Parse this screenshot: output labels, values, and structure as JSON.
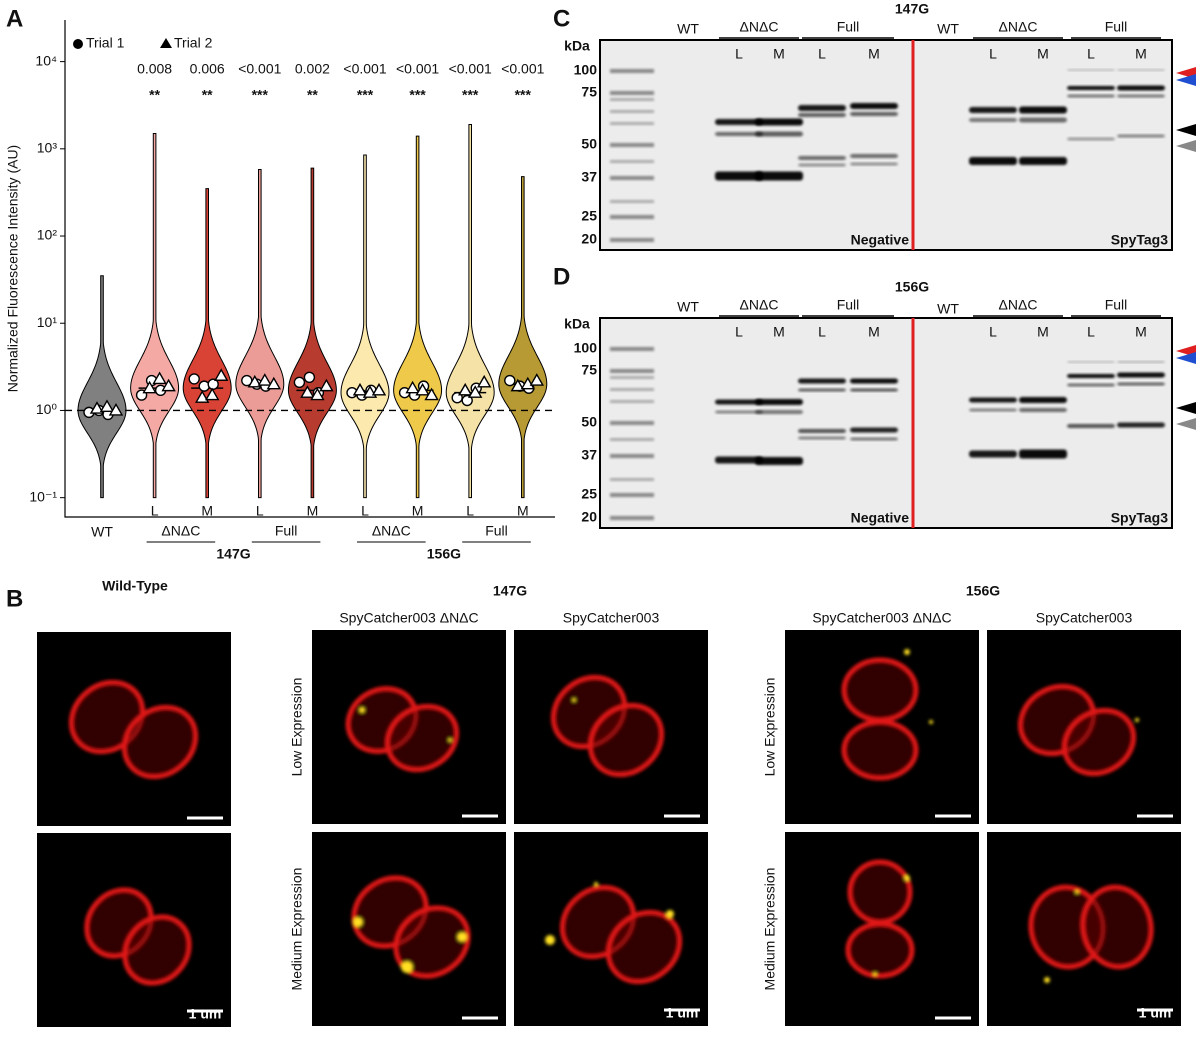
{
  "panel_labels": [
    "A",
    "B",
    "C",
    "D"
  ],
  "chart_data": {
    "type": "violin",
    "ylabel": "Normalized Fluorescence Intensity (AU)",
    "log_scale": true,
    "ylim": [
      0.06,
      30000
    ],
    "yticks": [
      {
        "value": 0.1,
        "label": "10⁻¹"
      },
      {
        "value": 1,
        "label": "10⁰"
      },
      {
        "value": 10,
        "label": "10¹"
      },
      {
        "value": 100,
        "label": "10²"
      },
      {
        "value": 1000,
        "label": "10³"
      },
      {
        "value": 10000,
        "label": "10⁴"
      }
    ],
    "reference_line": 1,
    "categories": [
      "WT",
      "L",
      "M",
      "L",
      "M",
      "L",
      "M",
      "L",
      "M"
    ],
    "subgroups": [
      "ΔNΔC",
      "Full",
      "ΔNΔC",
      "Full"
    ],
    "groups": [
      "147G",
      "156G"
    ],
    "colors": [
      "#808080",
      "#f4a9a5",
      "#d84335",
      "#eb9c97",
      "#b83b30",
      "#fbe9ae",
      "#efc94a",
      "#f5e2a6",
      "#b79a33"
    ],
    "mins": [
      0.1,
      0.1,
      0.1,
      0.1,
      0.1,
      0.1,
      0.1,
      0.1,
      0.1
    ],
    "maxs": [
      35,
      1500,
      350,
      580,
      600,
      850,
      1400,
      1900,
      480
    ],
    "medians": [
      1.0,
      1.8,
      1.8,
      2.0,
      1.7,
      1.6,
      1.7,
      1.6,
      2.0
    ],
    "p_values": [
      null,
      "0.008",
      "0.006",
      "<0.001",
      "0.002",
      "<0.001",
      "<0.001",
      "<0.001",
      "<0.001"
    ],
    "significance": [
      null,
      "**",
      "**",
      "***",
      "**",
      "***",
      "***",
      "***",
      "***"
    ],
    "series": [
      {
        "name": "Trial 1",
        "marker": "circle",
        "values": [
          [
            0.95,
            1.0,
            0.9
          ],
          [
            1.5,
            2.2,
            1.7
          ],
          [
            2.3,
            1.9,
            2.0
          ],
          [
            2.2,
            2.0,
            1.9
          ],
          [
            2.1,
            2.4,
            1.6
          ],
          [
            1.6,
            1.5,
            1.7
          ],
          [
            1.6,
            1.5,
            1.9
          ],
          [
            1.4,
            1.3,
            1.8
          ],
          [
            2.2,
            1.9,
            1.8
          ]
        ]
      },
      {
        "name": "Trial 2",
        "marker": "triangle",
        "values": [
          [
            1.05,
            1.1,
            1.0
          ],
          [
            1.8,
            2.3,
            1.9
          ],
          [
            1.4,
            1.5,
            2.5
          ],
          [
            2.1,
            2.2,
            2.0
          ],
          [
            1.6,
            1.5,
            1.9
          ],
          [
            1.7,
            1.6,
            1.7
          ],
          [
            1.8,
            1.7,
            1.5
          ],
          [
            1.7,
            1.6,
            2.1
          ],
          [
            1.9,
            2.0,
            2.2
          ]
        ]
      }
    ]
  },
  "gels": [
    {
      "title": "147G",
      "unit": "kDa",
      "markers": [
        "100",
        "75",
        "50",
        "37",
        "25",
        "20"
      ],
      "halves": [
        {
          "wt": "WT",
          "groups": [
            "ΔNΔC",
            "Full"
          ],
          "lanes": [
            "L",
            "M",
            "L",
            "M"
          ],
          "tag": "Negative"
        },
        {
          "wt": "WT",
          "groups": [
            "ΔNΔC",
            "Full"
          ],
          "lanes": [
            "L",
            "M",
            "L",
            "M"
          ],
          "tag": "SpyTag3"
        }
      ]
    },
    {
      "title": "156G",
      "unit": "kDa",
      "markers": [
        "100",
        "75",
        "50",
        "37",
        "25",
        "20"
      ],
      "halves": [
        {
          "wt": "WT",
          "groups": [
            "ΔNΔC",
            "Full"
          ],
          "lanes": [
            "L",
            "M",
            "L",
            "M"
          ],
          "tag": "Negative"
        },
        {
          "wt": "WT",
          "groups": [
            "ΔNΔC",
            "Full"
          ],
          "lanes": [
            "L",
            "M",
            "L",
            "M"
          ],
          "tag": "SpyTag3"
        }
      ]
    }
  ],
  "microscopy": {
    "wild_type": "Wild-Type",
    "groups": [
      {
        "title": "147G",
        "columns": [
          "SpyCatcher003 ΔNΔC",
          "SpyCatcher003"
        ],
        "rows": [
          "Low Expression",
          "Medium Expression"
        ]
      },
      {
        "title": "156G",
        "columns": [
          "SpyCatcher003 ΔNΔC",
          "SpyCatcher003"
        ],
        "rows": [
          "Low Expression",
          "Medium Expression"
        ]
      }
    ],
    "scale_label": "1 um"
  }
}
